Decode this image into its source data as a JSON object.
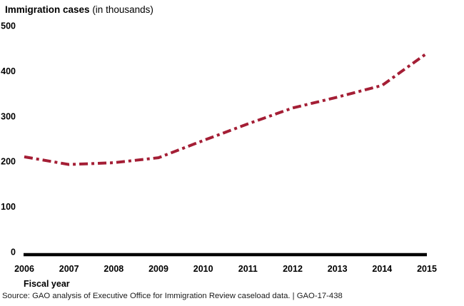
{
  "chart_data": {
    "type": "line",
    "title": "Immigration cases",
    "title_unit": "(in thousands)",
    "xlabel": "Fiscal year",
    "ylabel": "",
    "years": [
      "2006",
      "2007",
      "2008",
      "2009",
      "2010",
      "2011",
      "2012",
      "2013",
      "2014",
      "2015"
    ],
    "series": [
      {
        "name": "Immigration cases (in thousands)",
        "values": [
          210,
          193,
          197,
          208,
          246,
          283,
          318,
          342,
          368,
          439
        ]
      }
    ],
    "ylim": [
      0,
      500
    ],
    "yticks": [
      0,
      100,
      200,
      300,
      400,
      500
    ],
    "grid": false,
    "legend": "none",
    "line_style": "dash-dot",
    "line_color": "#A41E35",
    "axis_color": "#000000"
  },
  "source": {
    "text": "Source: GAO analysis of Executive Office for Immigration Review caseload data.  |  GAO-17-438"
  }
}
